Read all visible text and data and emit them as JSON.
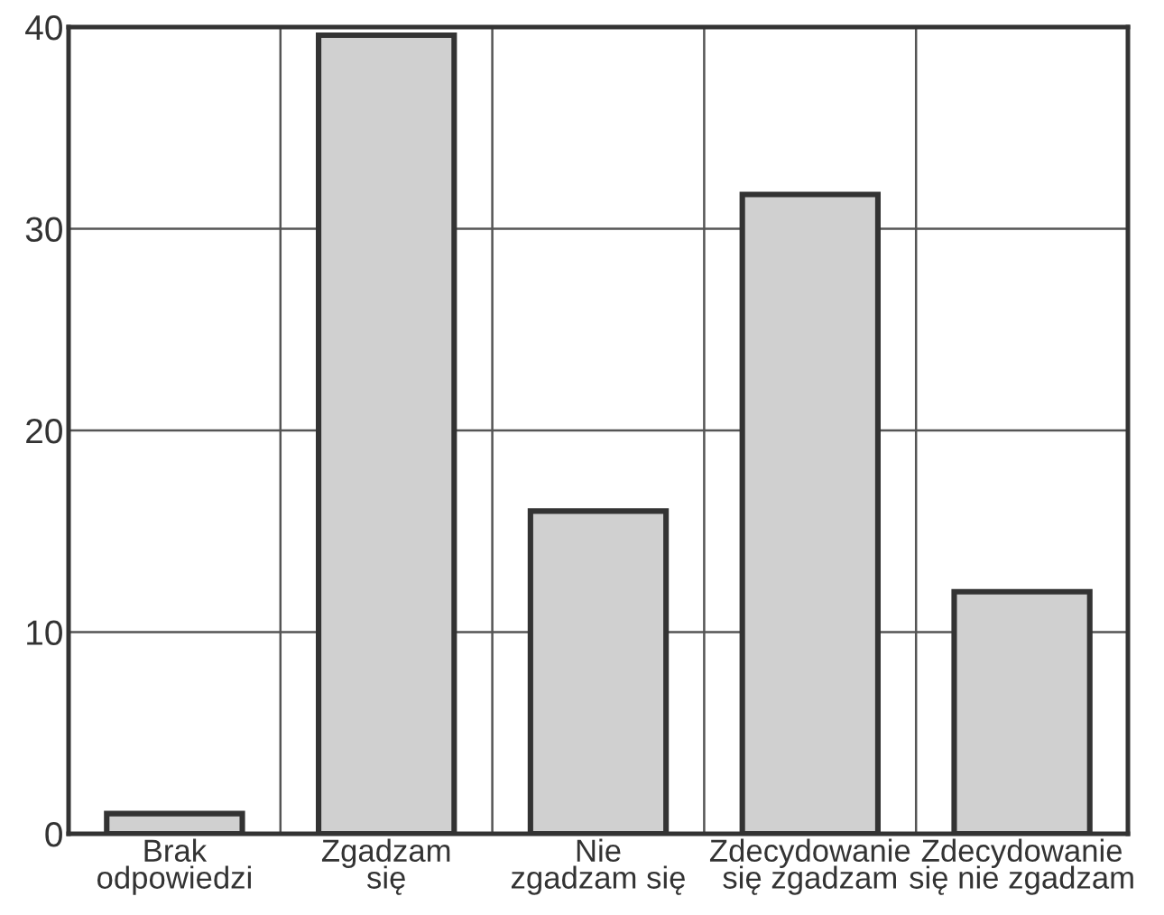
{
  "chart_data": {
    "type": "bar",
    "categories": [
      "Brak\nodpowiedzi",
      "Zgadzam\nsię",
      "Nie\nzgadzam się",
      "Zdecydowanie\nsię zgadzam",
      "Zdecydowanie\nsię nie zgadzam"
    ],
    "values": [
      1.0,
      39.6,
      16.0,
      31.7,
      12.0
    ],
    "color": "#d0d0d0",
    "ylim": [
      0,
      40
    ],
    "yticks": [
      0,
      10,
      20,
      30,
      40
    ],
    "grid": true
  }
}
